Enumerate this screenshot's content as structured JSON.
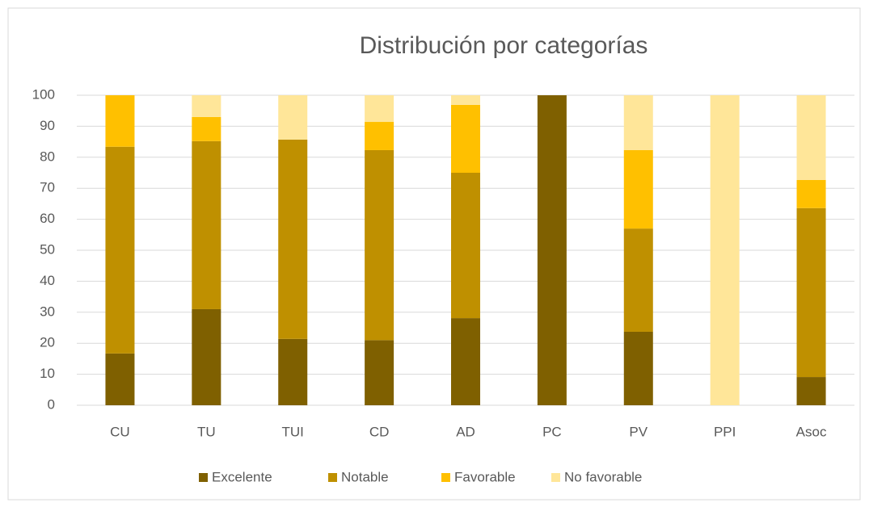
{
  "chart_data": {
    "type": "stacked_bar",
    "title": "Distribución por categorías",
    "categories": [
      "CU",
      "TU",
      "TUI",
      "CD",
      "AD",
      "PC",
      "PV",
      "PPI",
      "Asoc"
    ],
    "series": [
      {
        "name": "Excelente",
        "color": "#7f6000",
        "values": [
          16.7,
          31,
          21.4,
          21,
          28.1,
          100,
          23.7,
          0,
          9.1
        ]
      },
      {
        "name": "Notable",
        "color": "#bf9000",
        "values": [
          66.7,
          54.2,
          64.3,
          61.3,
          46.9,
          0,
          33.3,
          0,
          54.5
        ]
      },
      {
        "name": "Favorable",
        "color": "#ffc000",
        "values": [
          16.6,
          7.8,
          0,
          9.1,
          21.9,
          0,
          25.3,
          0,
          9.1
        ]
      },
      {
        "name": "No favorable",
        "color": "#ffe699",
        "values": [
          0,
          7,
          14.3,
          8.6,
          3.1,
          0,
          17.7,
          100,
          27.3
        ]
      }
    ],
    "ylim": [
      0,
      100
    ],
    "yticks": [
      0,
      10,
      20,
      30,
      40,
      50,
      60,
      70,
      80,
      90,
      100
    ],
    "grid": true,
    "legend": "bottom"
  }
}
